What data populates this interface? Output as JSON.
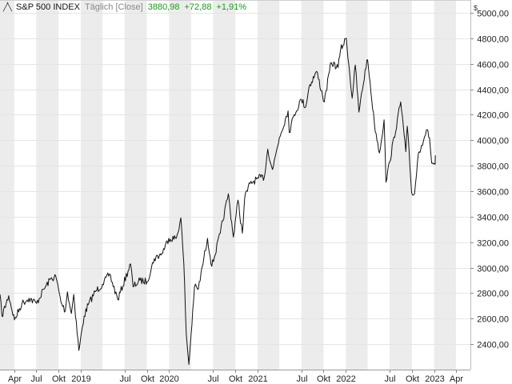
{
  "legend": {
    "icon": "line-chart-icon",
    "name": "S&P 500 INDEX",
    "mode": "Täglich [Close]",
    "last": "3880,98",
    "change": "+72,88",
    "pct": "+1,91%"
  },
  "currency": "$",
  "colors": {
    "line": "#111111",
    "band": "#ececec",
    "grid": "#e4e4e4",
    "positive": "#1a9a1a"
  },
  "chart_data": {
    "type": "line",
    "title": "",
    "xlabel": "",
    "ylabel": "",
    "ylim": [
      2200,
      5100
    ],
    "xlim": [
      "2018-02-01",
      "2023-05-31"
    ],
    "grid": true,
    "y_ticks": [
      {
        "value": 2400,
        "label": "2400,00"
      },
      {
        "value": 2600,
        "label": "2600,00"
      },
      {
        "value": 2800,
        "label": "2800,00"
      },
      {
        "value": 3000,
        "label": "3000,00"
      },
      {
        "value": 3200,
        "label": "3200,00"
      },
      {
        "value": 3400,
        "label": "3400,00"
      },
      {
        "value": 3600,
        "label": "3600,00"
      },
      {
        "value": 3800,
        "label": "3800,00"
      },
      {
        "value": 4000,
        "label": "4000,00"
      },
      {
        "value": 4200,
        "label": "4200,00"
      },
      {
        "value": 4400,
        "label": "4400,00"
      },
      {
        "value": 4600,
        "label": "4600,00"
      },
      {
        "value": 4800,
        "label": "4800,00"
      },
      {
        "value": 5000,
        "label": "5000,00"
      }
    ],
    "x_ticks": [
      {
        "date": "2018-04-01",
        "label": "Apr"
      },
      {
        "date": "2018-07-01",
        "label": "Jul"
      },
      {
        "date": "2018-10-01",
        "label": "Okt"
      },
      {
        "date": "2019-01-01",
        "label": "2019"
      },
      {
        "date": "2019-07-01",
        "label": "Jul"
      },
      {
        "date": "2019-10-01",
        "label": "Okt"
      },
      {
        "date": "2020-01-01",
        "label": "2020"
      },
      {
        "date": "2020-07-01",
        "label": "Jul"
      },
      {
        "date": "2020-10-01",
        "label": "Okt"
      },
      {
        "date": "2021-01-01",
        "label": "2021"
      },
      {
        "date": "2021-07-01",
        "label": "Jul"
      },
      {
        "date": "2021-10-01",
        "label": "Okt"
      },
      {
        "date": "2022-01-01",
        "label": "2022"
      },
      {
        "date": "2022-07-01",
        "label": "Jul"
      },
      {
        "date": "2022-10-01",
        "label": "Okt"
      },
      {
        "date": "2023-01-01",
        "label": "2023"
      },
      {
        "date": "2023-04-01",
        "label": "Apr"
      }
    ],
    "series": [
      {
        "x": [
          "2018-02-01",
          "2018-02-09",
          "2018-03-09",
          "2018-04-02",
          "2018-05-03",
          "2018-06-01",
          "2018-07-02",
          "2018-08-01",
          "2018-08-29",
          "2018-09-20",
          "2018-10-11",
          "2018-10-29",
          "2018-11-07",
          "2018-11-23",
          "2018-12-03",
          "2018-12-24",
          "2019-01-15",
          "2019-02-01",
          "2019-03-01",
          "2019-04-01",
          "2019-04-30",
          "2019-06-03",
          "2019-07-26",
          "2019-08-05",
          "2019-09-03",
          "2019-10-02",
          "2019-11-01",
          "2019-12-02",
          "2019-12-31",
          "2020-01-31",
          "2020-02-19",
          "2020-03-02",
          "2020-03-12",
          "2020-03-23",
          "2020-04-01",
          "2020-04-15",
          "2020-05-01",
          "2020-06-08",
          "2020-06-26",
          "2020-07-31",
          "2020-09-02",
          "2020-09-23",
          "2020-10-12",
          "2020-10-30",
          "2020-11-09",
          "2020-12-01",
          "2021-01-04",
          "2021-01-29",
          "2021-02-12",
          "2021-03-04",
          "2021-04-01",
          "2021-05-07",
          "2021-05-12",
          "2021-06-01",
          "2021-07-01",
          "2021-07-19",
          "2021-08-02",
          "2021-09-02",
          "2021-10-04",
          "2021-11-01",
          "2021-11-30",
          "2021-12-10",
          "2022-01-03",
          "2022-01-27",
          "2022-02-09",
          "2022-02-24",
          "2022-03-29",
          "2022-04-04",
          "2022-04-29",
          "2022-05-20",
          "2022-06-08",
          "2022-06-16",
          "2022-07-01",
          "2022-08-16",
          "2022-09-06",
          "2022-09-12",
          "2022-09-30",
          "2022-10-12",
          "2022-10-28",
          "2022-11-10",
          "2022-11-30",
          "2022-12-13",
          "2022-12-22",
          "2023-01-05",
          "2023-01-06"
        ],
        "y": [
          2790,
          2620,
          2780,
          2590,
          2720,
          2760,
          2720,
          2830,
          2910,
          2930,
          2730,
          2660,
          2810,
          2640,
          2790,
          2350,
          2620,
          2710,
          2810,
          2870,
          2950,
          2750,
          3030,
          2850,
          2900,
          2890,
          3070,
          3110,
          3230,
          3230,
          3390,
          3030,
          2480,
          2240,
          2470,
          2850,
          2830,
          3230,
          3010,
          3270,
          3580,
          3240,
          3530,
          3270,
          3550,
          3660,
          3700,
          3710,
          3930,
          3770,
          4020,
          4230,
          4060,
          4200,
          4320,
          4260,
          4420,
          4540,
          4300,
          4610,
          4570,
          4710,
          4800,
          4330,
          4590,
          4220,
          4630,
          4580,
          4130,
          3900,
          4160,
          3670,
          3830,
          4300,
          3910,
          4110,
          3590,
          3580,
          3900,
          3960,
          4080,
          4020,
          3820,
          3810,
          3880.98
        ]
      }
    ]
  }
}
